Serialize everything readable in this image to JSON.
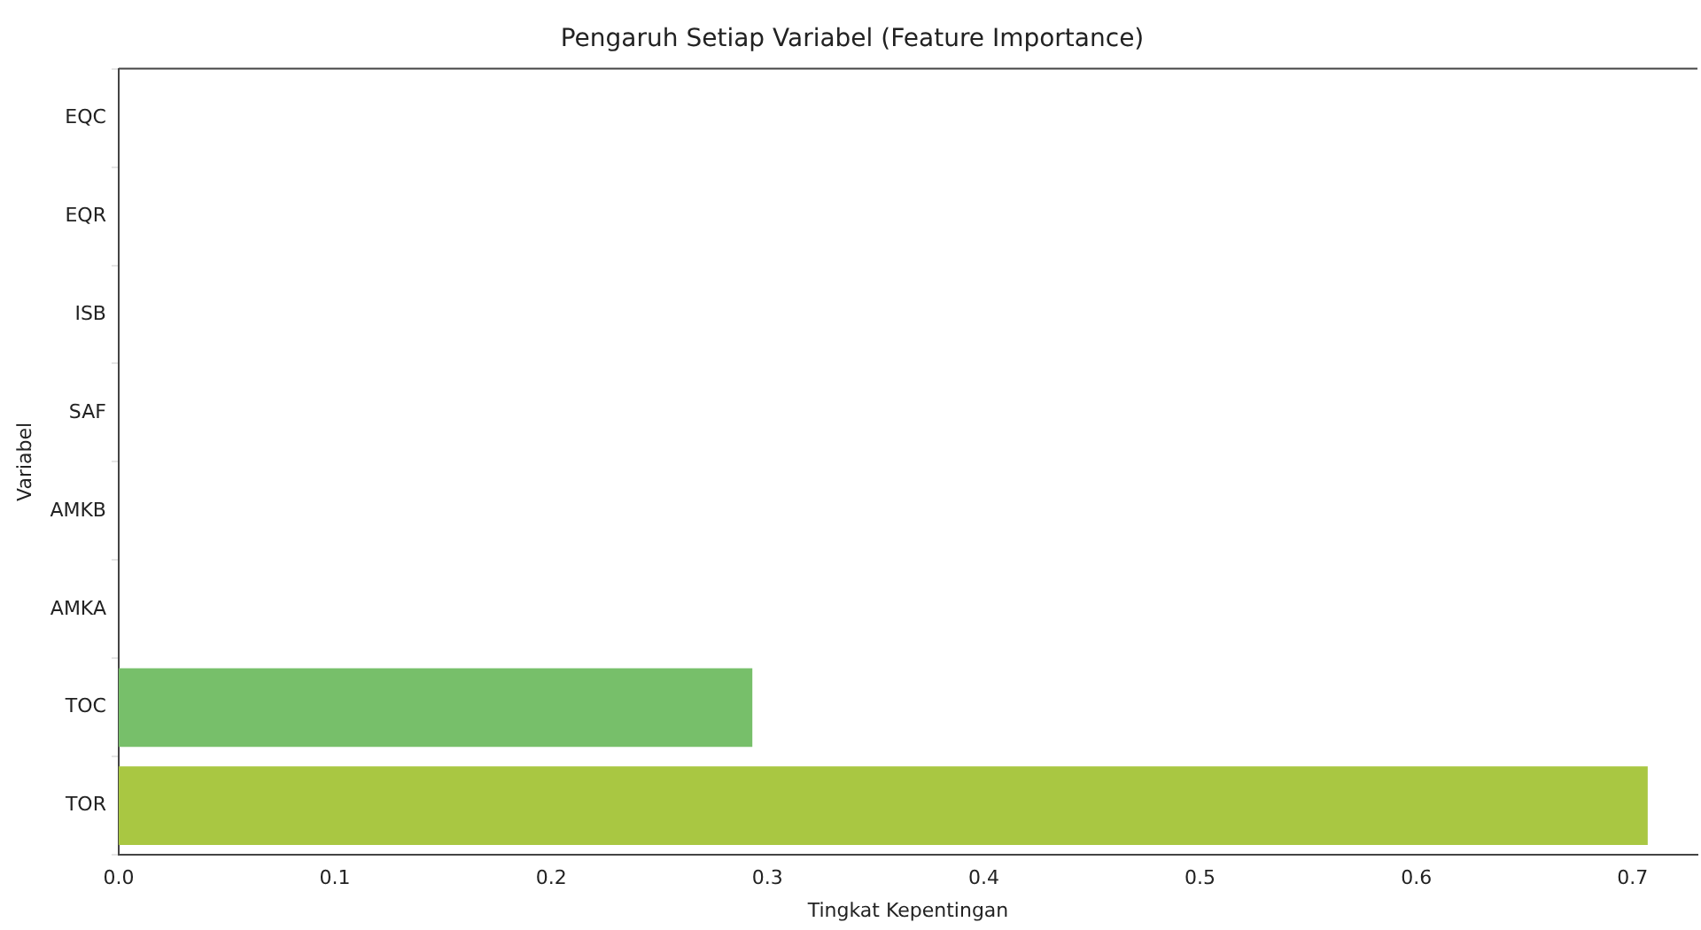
{
  "chart_data": {
    "type": "bar",
    "orientation": "horizontal",
    "title": "Pengaruh Setiap Variabel (Feature Importance)",
    "xlabel": "Tingkat Kepentingan",
    "ylabel": "Variabel",
    "categories": [
      "EQC",
      "EQR",
      "ISB",
      "SAF",
      "AMKB",
      "AMKA",
      "TOC",
      "TOR"
    ],
    "values": [
      0,
      0,
      0,
      0,
      0,
      0,
      0.293,
      0.707
    ],
    "colors": [
      "#3b528b",
      "#2c728e",
      "#21918c",
      "#28ae80",
      "#5ec962",
      "#5ec962",
      "#77bf6a",
      "#a9c742"
    ],
    "xlim": [
      0,
      0.73
    ],
    "xticks": [
      {
        "value": 0,
        "label": "0.0"
      },
      0.1,
      0.2,
      0.3,
      0.4,
      0.5,
      0.6,
      0.7
    ],
    "grid": false,
    "legend": false
  }
}
